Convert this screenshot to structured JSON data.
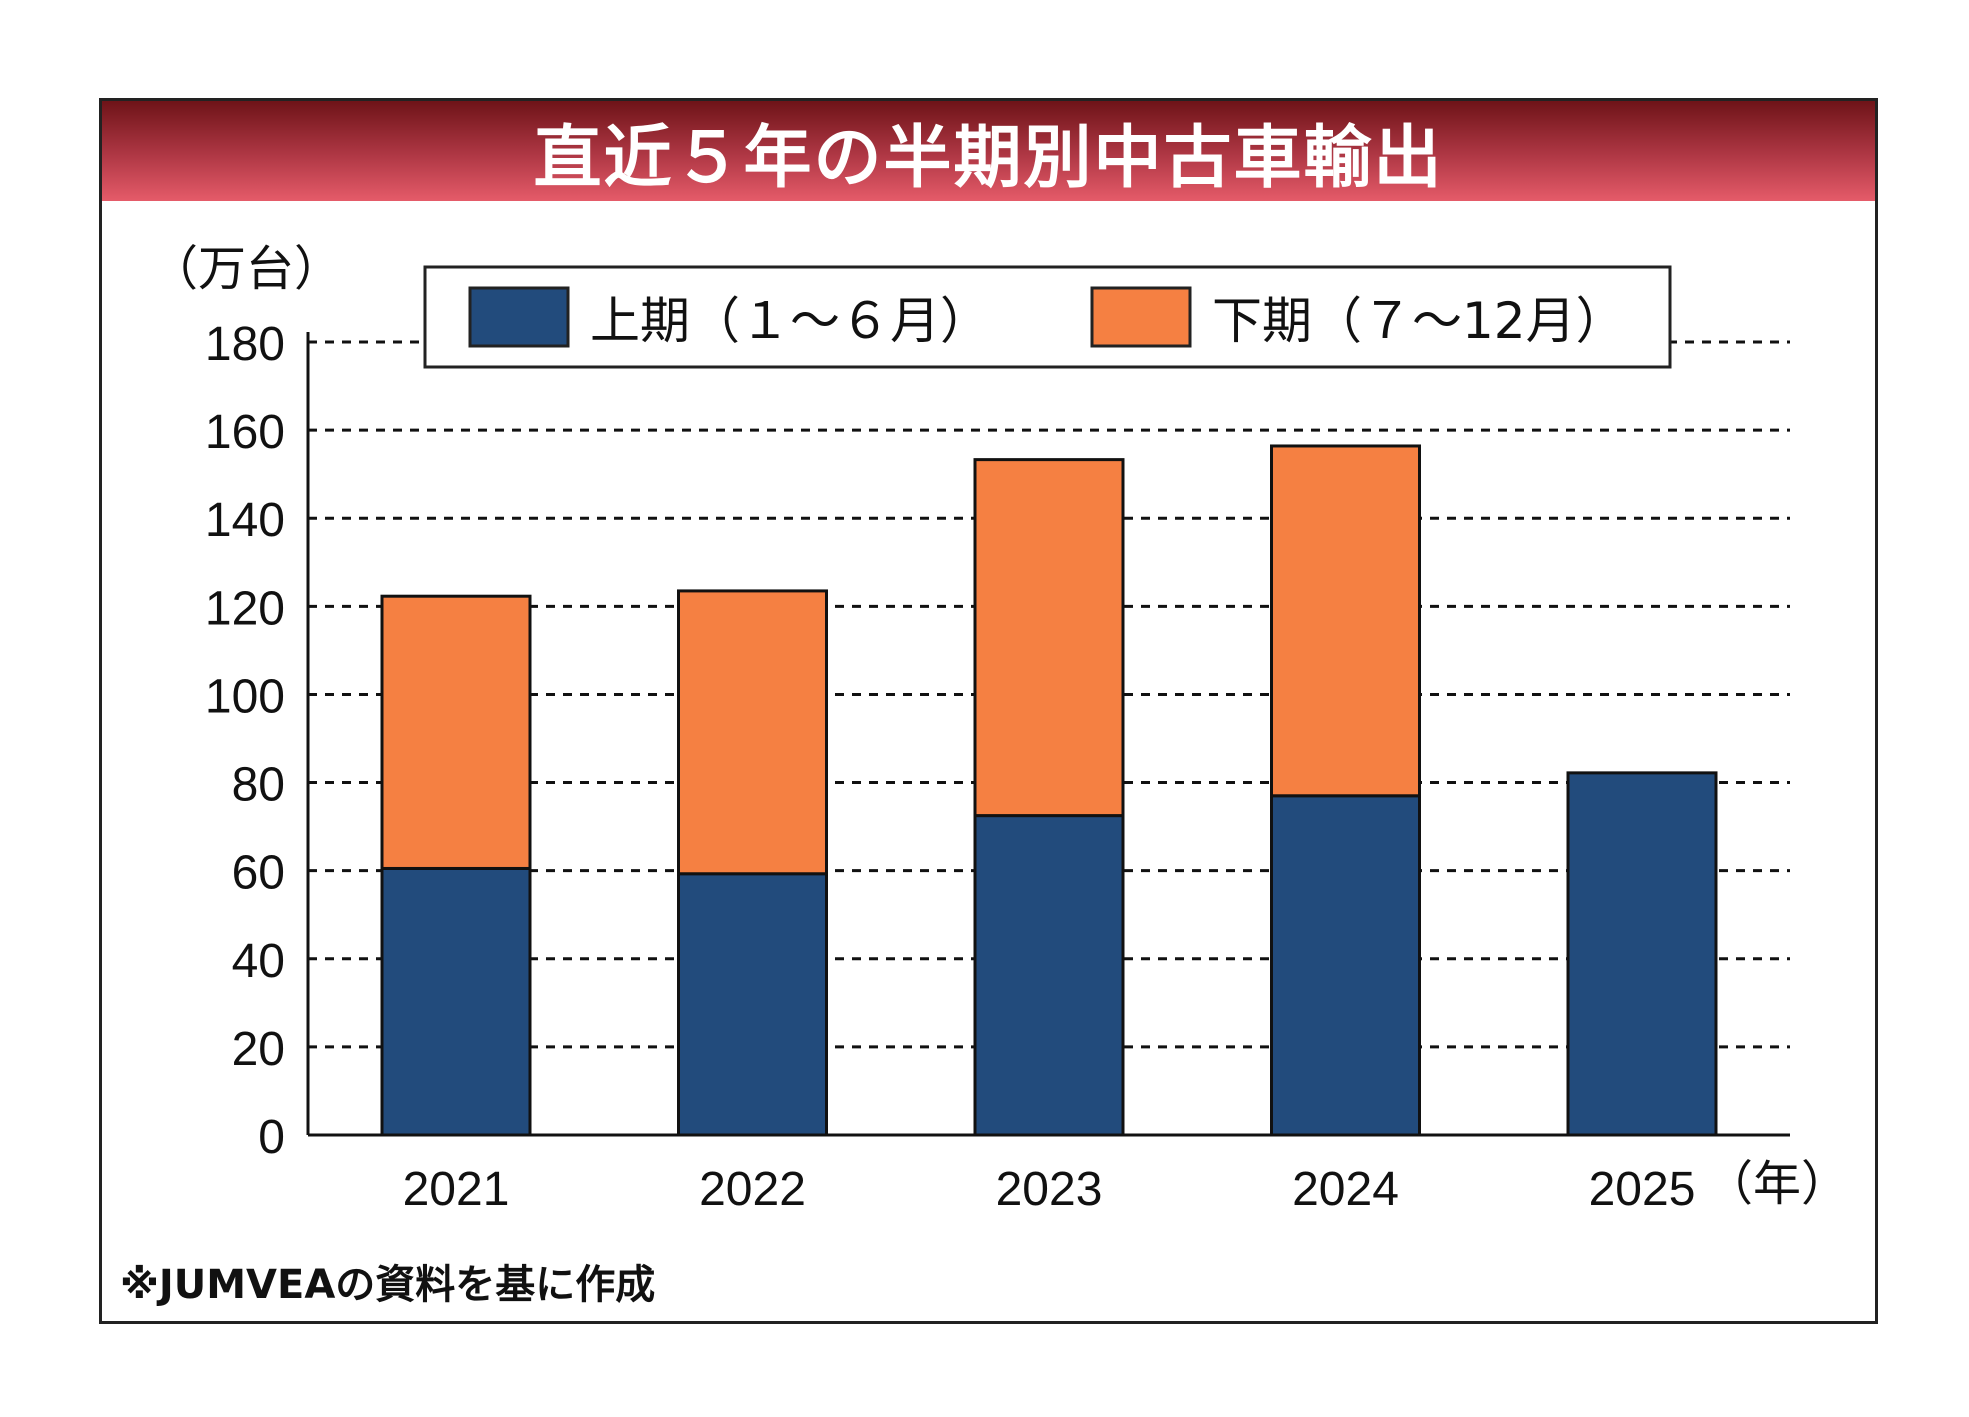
{
  "title": "直近５年の半期別中古車輸出",
  "colors": {
    "first_half": "#224b7c",
    "second_half": "#f58042",
    "title_dark": "#6e1318",
    "title_light": "#e55b69"
  },
  "chart_data": {
    "type": "bar",
    "stacked": true,
    "title": "直近５年の半期別中古車輸出",
    "ylabel": "（万台）",
    "xlabel": "（年）",
    "ylim": [
      0,
      180
    ],
    "yticks": [
      0,
      20,
      40,
      60,
      80,
      100,
      120,
      140,
      160,
      180
    ],
    "grid": true,
    "legend_position": "top",
    "categories": [
      "2021",
      "2022",
      "2023",
      "2024",
      "2025"
    ],
    "series": [
      {
        "name": "上期（１～６月）",
        "values": [
          60.5,
          59.3,
          72.5,
          77.0,
          82.2
        ]
      },
      {
        "name": "下期（７～12月）",
        "values": [
          61.8,
          64.2,
          80.8,
          79.4,
          null
        ]
      }
    ],
    "note": "※JUMVEAの資料を基に作成"
  }
}
